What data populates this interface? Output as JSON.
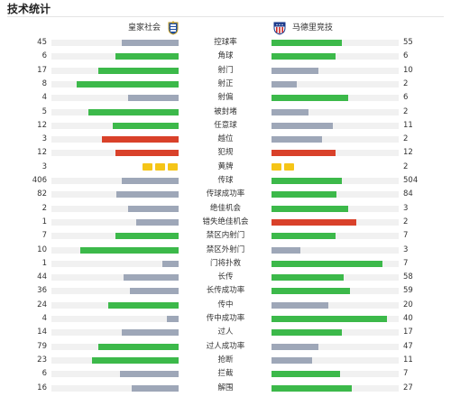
{
  "header": {
    "title": "技术统计"
  },
  "teams": {
    "home": {
      "name": "皇家社会",
      "badge_icon": "real-sociedad-badge-icon"
    },
    "away": {
      "name": "马德里竞技",
      "badge_icon": "atletico-madrid-badge-icon"
    }
  },
  "colors": {
    "green": "#3cb94a",
    "gray": "#9ea7b8",
    "red": "#d9412a",
    "yellow": "#f5c518",
    "track": "#f1f1f1"
  },
  "stats": [
    {
      "label": "控球率",
      "home": "45",
      "away": "55",
      "home_fill": 0.45,
      "away_fill": 0.55,
      "home_color": "gray",
      "away_color": "green"
    },
    {
      "label": "角球",
      "home": "6",
      "away": "6",
      "home_fill": 0.5,
      "away_fill": 0.5,
      "home_color": "green",
      "away_color": "green"
    },
    {
      "label": "射门",
      "home": "17",
      "away": "10",
      "home_fill": 0.63,
      "away_fill": 0.37,
      "home_color": "green",
      "away_color": "gray"
    },
    {
      "label": "射正",
      "home": "8",
      "away": "2",
      "home_fill": 0.8,
      "away_fill": 0.2,
      "home_color": "green",
      "away_color": "gray"
    },
    {
      "label": "射偏",
      "home": "4",
      "away": "6",
      "home_fill": 0.4,
      "away_fill": 0.6,
      "home_color": "gray",
      "away_color": "green"
    },
    {
      "label": "被封堵",
      "home": "5",
      "away": "2",
      "home_fill": 0.71,
      "away_fill": 0.29,
      "home_color": "green",
      "away_color": "gray"
    },
    {
      "label": "任意球",
      "home": "12",
      "away": "11",
      "home_fill": 0.52,
      "away_fill": 0.48,
      "home_color": "green",
      "away_color": "gray"
    },
    {
      "label": "越位",
      "home": "3",
      "away": "2",
      "home_fill": 0.6,
      "away_fill": 0.4,
      "home_color": "red",
      "away_color": "gray"
    },
    {
      "label": "犯规",
      "home": "12",
      "away": "12",
      "home_fill": 0.5,
      "away_fill": 0.5,
      "home_color": "red",
      "away_color": "red"
    },
    {
      "label": "黄牌",
      "home": "3",
      "away": "2",
      "home_cards": 3,
      "away_cards": 2,
      "type": "cards"
    },
    {
      "label": "传球",
      "home": "406",
      "away": "504",
      "home_fill": 0.45,
      "away_fill": 0.55,
      "home_color": "gray",
      "away_color": "green"
    },
    {
      "label": "传球成功率",
      "home": "82",
      "away": "84",
      "home_fill": 0.49,
      "away_fill": 0.51,
      "home_color": "gray",
      "away_color": "green"
    },
    {
      "label": "绝佳机会",
      "home": "2",
      "away": "3",
      "home_fill": 0.4,
      "away_fill": 0.6,
      "home_color": "gray",
      "away_color": "green"
    },
    {
      "label": "错失绝佳机会",
      "home": "1",
      "away": "2",
      "home_fill": 0.33,
      "away_fill": 0.67,
      "home_color": "gray",
      "away_color": "red"
    },
    {
      "label": "禁区内射门",
      "home": "7",
      "away": "7",
      "home_fill": 0.5,
      "away_fill": 0.5,
      "home_color": "green",
      "away_color": "green"
    },
    {
      "label": "禁区外射门",
      "home": "10",
      "away": "3",
      "home_fill": 0.77,
      "away_fill": 0.23,
      "home_color": "green",
      "away_color": "gray"
    },
    {
      "label": "门将扑救",
      "home": "1",
      "away": "7",
      "home_fill": 0.13,
      "away_fill": 0.87,
      "home_color": "gray",
      "away_color": "green"
    },
    {
      "label": "长传",
      "home": "44",
      "away": "58",
      "home_fill": 0.43,
      "away_fill": 0.57,
      "home_color": "gray",
      "away_color": "green"
    },
    {
      "label": "长传成功率",
      "home": "36",
      "away": "59",
      "home_fill": 0.38,
      "away_fill": 0.62,
      "home_color": "gray",
      "away_color": "green"
    },
    {
      "label": "传中",
      "home": "24",
      "away": "20",
      "home_fill": 0.55,
      "away_fill": 0.45,
      "home_color": "green",
      "away_color": "gray"
    },
    {
      "label": "传中成功率",
      "home": "4",
      "away": "40",
      "home_fill": 0.09,
      "away_fill": 0.91,
      "home_color": "gray",
      "away_color": "green"
    },
    {
      "label": "过人",
      "home": "14",
      "away": "17",
      "home_fill": 0.45,
      "away_fill": 0.55,
      "home_color": "gray",
      "away_color": "green"
    },
    {
      "label": "过人成功率",
      "home": "79",
      "away": "47",
      "home_fill": 0.63,
      "away_fill": 0.37,
      "home_color": "green",
      "away_color": "gray"
    },
    {
      "label": "抢断",
      "home": "23",
      "away": "11",
      "home_fill": 0.68,
      "away_fill": 0.32,
      "home_color": "green",
      "away_color": "gray"
    },
    {
      "label": "拦截",
      "home": "6",
      "away": "7",
      "home_fill": 0.46,
      "away_fill": 0.54,
      "home_color": "gray",
      "away_color": "green"
    },
    {
      "label": "解围",
      "home": "16",
      "away": "27",
      "home_fill": 0.37,
      "away_fill": 0.63,
      "home_color": "gray",
      "away_color": "green"
    }
  ]
}
